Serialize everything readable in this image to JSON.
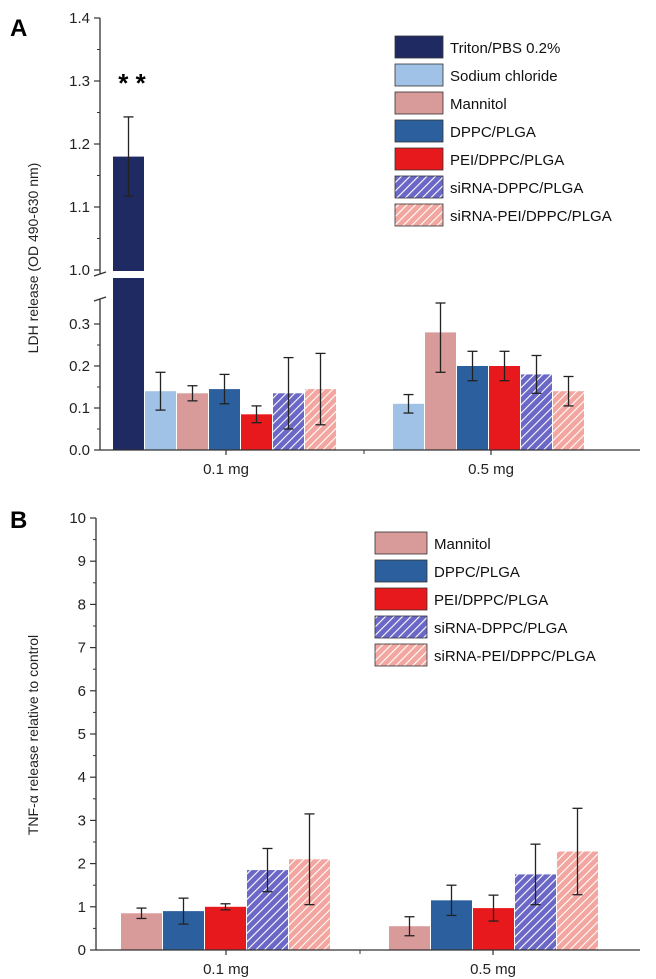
{
  "colors": {
    "Triton/PBS 0.2%": "#1f2a63",
    "Sodium chloride": "#9fc2e6",
    "Mannitol": "#d99a9a",
    "DPPC/PLGA": "#2c5f9e",
    "PEI/DPPC/PLGA": "#e8191c",
    "siRNA-DPPC/PLGA": "#6b67c6",
    "siRNA-PEI/DPPC/PLGA": "#f3a6a0"
  },
  "chart_data": [
    {
      "panel": "A",
      "type": "bar",
      "ylabel": "LDH release (OD 490-630 nm)",
      "categories": [
        "0.1 mg",
        "0.5 mg"
      ],
      "axis_break": true,
      "lower_range": [
        0,
        0.35
      ],
      "upper_range": [
        1.0,
        1.4
      ],
      "yticks_lower": [
        "0.0",
        "0.1",
        "0.2",
        "0.3"
      ],
      "yticks_upper": [
        "1.0",
        "1.1",
        "1.2",
        "1.3",
        "1.4"
      ],
      "legend_position": "top-right",
      "significance_label": "* *",
      "series": [
        {
          "name": "Triton/PBS 0.2%",
          "values": [
            1.18,
            null
          ],
          "errors": [
            0.063,
            null
          ],
          "hatched": false
        },
        {
          "name": "Sodium chloride",
          "values": [
            0.14,
            0.11
          ],
          "errors": [
            0.045,
            0.022
          ],
          "hatched": false
        },
        {
          "name": "Mannitol",
          "values": [
            0.135,
            0.28
          ],
          "errors": [
            0.018,
            0.095
          ],
          "hatched": false
        },
        {
          "name": "DPPC/PLGA",
          "values": [
            0.145,
            0.2
          ],
          "errors": [
            0.035,
            0.035
          ],
          "hatched": false
        },
        {
          "name": "PEI/DPPC/PLGA",
          "values": [
            0.085,
            0.2
          ],
          "errors": [
            0.02,
            0.035
          ],
          "hatched": false
        },
        {
          "name": "siRNA-DPPC/PLGA",
          "values": [
            0.135,
            0.18
          ],
          "errors": [
            0.085,
            0.045
          ],
          "hatched": true
        },
        {
          "name": "siRNA-PEI/DPPC/PLGA",
          "values": [
            0.145,
            0.14
          ],
          "errors": [
            0.085,
            0.035
          ],
          "hatched": true
        }
      ]
    },
    {
      "panel": "B",
      "type": "bar",
      "ylabel": "TNF-α release relative to control",
      "categories": [
        "0.1 mg",
        "0.5 mg"
      ],
      "ylim": [
        0,
        10
      ],
      "yticks": [
        "0",
        "1",
        "2",
        "3",
        "4",
        "5",
        "6",
        "7",
        "8",
        "9",
        "10"
      ],
      "legend_position": "top-right",
      "series": [
        {
          "name": "Mannitol",
          "values": [
            0.85,
            0.55
          ],
          "errors": [
            0.12,
            0.22
          ],
          "hatched": false
        },
        {
          "name": "DPPC/PLGA",
          "values": [
            0.9,
            1.15
          ],
          "errors": [
            0.3,
            0.35
          ],
          "hatched": false
        },
        {
          "name": "PEI/DPPC/PLGA",
          "values": [
            1.0,
            0.97
          ],
          "errors": [
            0.07,
            0.3
          ],
          "hatched": false
        },
        {
          "name": "siRNA-DPPC/PLGA",
          "values": [
            1.85,
            1.75
          ],
          "errors": [
            0.5,
            0.7
          ],
          "hatched": true
        },
        {
          "name": "siRNA-PEI/DPPC/PLGA",
          "values": [
            2.1,
            2.28
          ],
          "errors": [
            1.05,
            1.0
          ],
          "hatched": true
        }
      ]
    }
  ],
  "panel_labels": {
    "a": "A",
    "b": "B"
  }
}
